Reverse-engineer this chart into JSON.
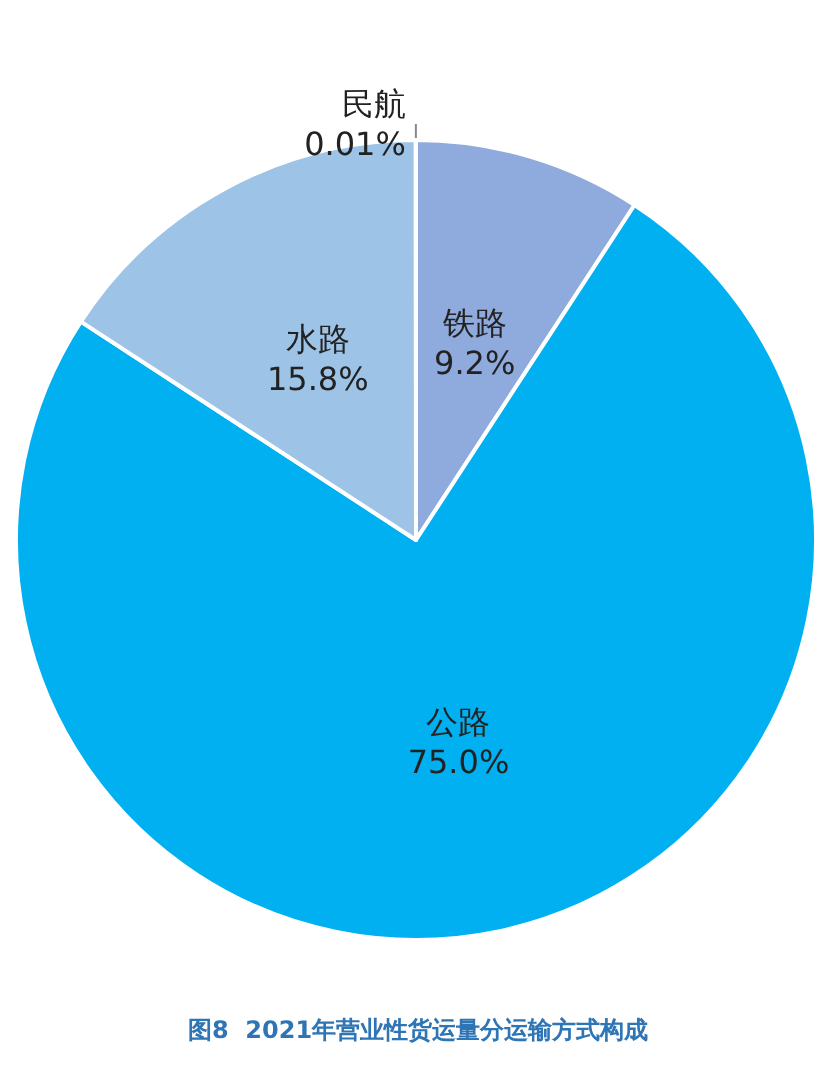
{
  "chart_data": {
    "type": "pie",
    "title": "图8  2021年营业性货运量分运输方式构成",
    "categories": [
      "铁路",
      "公路",
      "水路",
      "民航"
    ],
    "values": [
      9.2,
      75.0,
      15.8,
      0.01
    ],
    "colors": [
      "#8faadc",
      "#00b0f0",
      "#9dc3e6",
      "#a5a5a5"
    ],
    "value_labels": [
      "9.2%",
      "75.0%",
      "15.8%",
      "0.01%"
    ],
    "legend": false
  }
}
